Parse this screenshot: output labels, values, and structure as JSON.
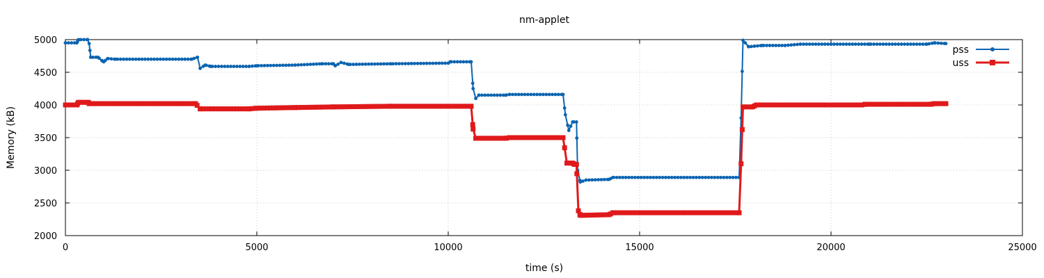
{
  "chart_data": {
    "type": "line",
    "title": "nm-applet",
    "xlabel": "time (s)",
    "ylabel": "Memory (kB)",
    "xlim": [
      0,
      25000
    ],
    "ylim": [
      2000,
      5000
    ],
    "xticks": [
      0,
      5000,
      10000,
      15000,
      20000,
      25000
    ],
    "yticks": [
      2000,
      2500,
      3000,
      3500,
      4000,
      4500,
      5000
    ],
    "xtick_labels": [
      "0",
      "5000",
      "10000",
      "15000",
      "20000",
      "25000"
    ],
    "ytick_labels": [
      "2000",
      "2500",
      "3000",
      "3500",
      "4000",
      "4500",
      "5000"
    ],
    "grid": true,
    "legend_position": "top-right",
    "series": [
      {
        "name": "pss",
        "color": "#0b64b0",
        "marker": "circle",
        "points": [
          [
            0,
            4950
          ],
          [
            300,
            4950
          ],
          [
            340,
            5000
          ],
          [
            580,
            5000
          ],
          [
            620,
            4940
          ],
          [
            660,
            4730
          ],
          [
            850,
            4730
          ],
          [
            950,
            4680
          ],
          [
            1000,
            4660
          ],
          [
            1100,
            4710
          ],
          [
            1300,
            4700
          ],
          [
            3300,
            4700
          ],
          [
            3450,
            4730
          ],
          [
            3520,
            4560
          ],
          [
            3650,
            4610
          ],
          [
            3800,
            4590
          ],
          [
            4800,
            4590
          ],
          [
            5000,
            4600
          ],
          [
            6000,
            4610
          ],
          [
            6700,
            4630
          ],
          [
            7000,
            4630
          ],
          [
            7050,
            4600
          ],
          [
            7200,
            4650
          ],
          [
            7400,
            4620
          ],
          [
            8500,
            4630
          ],
          [
            10000,
            4640
          ],
          [
            10050,
            4660
          ],
          [
            10600,
            4660
          ],
          [
            10650,
            4250
          ],
          [
            10720,
            4100
          ],
          [
            10800,
            4150
          ],
          [
            11500,
            4150
          ],
          [
            11600,
            4160
          ],
          [
            13000,
            4160
          ],
          [
            13060,
            3850
          ],
          [
            13150,
            3610
          ],
          [
            13250,
            3740
          ],
          [
            13350,
            3740
          ],
          [
            13380,
            3000
          ],
          [
            13450,
            2820
          ],
          [
            13600,
            2850
          ],
          [
            14200,
            2860
          ],
          [
            14300,
            2890
          ],
          [
            17600,
            2890
          ],
          [
            17650,
            3800
          ],
          [
            17700,
            4990
          ],
          [
            17850,
            4890
          ],
          [
            18000,
            4900
          ],
          [
            18200,
            4910
          ],
          [
            18800,
            4910
          ],
          [
            19200,
            4930
          ],
          [
            20000,
            4930
          ],
          [
            21000,
            4930
          ],
          [
            22500,
            4930
          ],
          [
            22700,
            4950
          ],
          [
            23000,
            4940
          ]
        ]
      },
      {
        "name": "uss",
        "color": "#e0191b",
        "marker": "square",
        "points": [
          [
            0,
            4000
          ],
          [
            300,
            4000
          ],
          [
            340,
            4040
          ],
          [
            600,
            4040
          ],
          [
            620,
            4020
          ],
          [
            3400,
            4020
          ],
          [
            3520,
            3940
          ],
          [
            4800,
            3940
          ],
          [
            5000,
            3950
          ],
          [
            6000,
            3960
          ],
          [
            7000,
            3970
          ],
          [
            8500,
            3980
          ],
          [
            10600,
            3980
          ],
          [
            10650,
            3630
          ],
          [
            10720,
            3490
          ],
          [
            11500,
            3490
          ],
          [
            11600,
            3500
          ],
          [
            13000,
            3500
          ],
          [
            13100,
            3110
          ],
          [
            13250,
            3110
          ],
          [
            13300,
            3090
          ],
          [
            13350,
            3090
          ],
          [
            13400,
            2380
          ],
          [
            13450,
            2310
          ],
          [
            14200,
            2320
          ],
          [
            14300,
            2350
          ],
          [
            17600,
            2350
          ],
          [
            17650,
            3100
          ],
          [
            17700,
            3970
          ],
          [
            17950,
            3970
          ],
          [
            18050,
            4000
          ],
          [
            20800,
            4000
          ],
          [
            20900,
            4010
          ],
          [
            22600,
            4010
          ],
          [
            22700,
            4020
          ],
          [
            23000,
            4020
          ]
        ]
      }
    ]
  }
}
